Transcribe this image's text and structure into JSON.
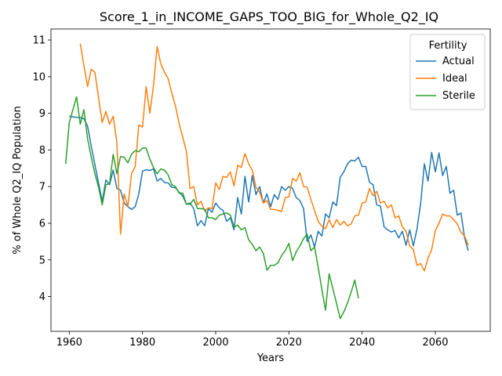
{
  "chart_data": {
    "type": "line",
    "title": "Score_1_in_INCOME_GAPS_TOO_BIG_for_Whole_Q2_IQ",
    "xlabel": "Years",
    "ylabel": "% of Whole Q2_IQ Population",
    "xlim": [
      1955,
      2075
    ],
    "ylim": [
      3.05,
      11.3
    ],
    "xticks": [
      1960,
      1980,
      2000,
      2020,
      2040,
      2060
    ],
    "yticks": [
      4,
      5,
      6,
      7,
      8,
      9,
      10,
      11
    ],
    "grid": false,
    "legend": {
      "title": "Fertility",
      "position": "top-right"
    },
    "series": [
      {
        "name": "Actual",
        "color": "#1f77b4",
        "points": [
          [
            1960,
            8.92
          ],
          [
            1961,
            8.9
          ],
          [
            1962,
            8.89
          ],
          [
            1963,
            8.88
          ],
          [
            1964,
            8.85
          ],
          [
            1965,
            8.65
          ],
          [
            1966,
            8.1
          ],
          [
            1967,
            7.6
          ],
          [
            1968,
            7.1
          ],
          [
            1969,
            6.6
          ],
          [
            1970,
            7.18
          ],
          [
            1971,
            7.05
          ],
          [
            1972,
            7.45
          ],
          [
            1973,
            6.95
          ],
          [
            1974,
            6.9
          ],
          [
            1975,
            6.55
          ],
          [
            1976,
            6.45
          ],
          [
            1977,
            6.38
          ],
          [
            1978,
            6.45
          ],
          [
            1979,
            6.8
          ],
          [
            1980,
            7.42
          ],
          [
            1981,
            7.46
          ],
          [
            1982,
            7.44
          ],
          [
            1983,
            7.48
          ],
          [
            1984,
            7.15
          ],
          [
            1985,
            7.22
          ],
          [
            1986,
            7.11
          ],
          [
            1987,
            7.1
          ],
          [
            1988,
            6.98
          ],
          [
            1989,
            6.97
          ],
          [
            1990,
            6.85
          ],
          [
            1991,
            6.74
          ],
          [
            1992,
            6.52
          ],
          [
            1993,
            6.55
          ],
          [
            1994,
            6.4
          ],
          [
            1995,
            5.93
          ],
          [
            1996,
            6.07
          ],
          [
            1997,
            5.93
          ],
          [
            1998,
            6.4
          ],
          [
            1999,
            6.3
          ],
          [
            2000,
            6.55
          ],
          [
            2001,
            6.42
          ],
          [
            2002,
            6.35
          ],
          [
            2003,
            6.05
          ],
          [
            2004,
            6.15
          ],
          [
            2005,
            5.82
          ],
          [
            2006,
            6.7
          ],
          [
            2007,
            6.25
          ],
          [
            2008,
            7.28
          ],
          [
            2009,
            6.58
          ],
          [
            2010,
            7.3
          ],
          [
            2011,
            6.78
          ],
          [
            2012,
            7.0
          ],
          [
            2013,
            6.55
          ],
          [
            2014,
            6.8
          ],
          [
            2015,
            6.45
          ],
          [
            2016,
            6.78
          ],
          [
            2017,
            6.65
          ],
          [
            2018,
            7.0
          ],
          [
            2019,
            6.9
          ],
          [
            2020,
            7.0
          ],
          [
            2021,
            6.95
          ],
          [
            2022,
            6.7
          ],
          [
            2023,
            6.62
          ],
          [
            2024,
            6.4
          ],
          [
            2025,
            5.5
          ],
          [
            2026,
            5.68
          ],
          [
            2027,
            5.35
          ],
          [
            2028,
            5.78
          ],
          [
            2029,
            5.65
          ],
          [
            2030,
            6.25
          ],
          [
            2031,
            6.15
          ],
          [
            2032,
            6.58
          ],
          [
            2033,
            6.48
          ],
          [
            2034,
            7.25
          ],
          [
            2035,
            7.4
          ],
          [
            2036,
            7.62
          ],
          [
            2037,
            7.72
          ],
          [
            2038,
            7.7
          ],
          [
            2039,
            7.8
          ],
          [
            2040,
            7.55
          ],
          [
            2041,
            7.55
          ],
          [
            2042,
            7.12
          ],
          [
            2043,
            7.05
          ],
          [
            2044,
            6.5
          ],
          [
            2045,
            6.47
          ],
          [
            2046,
            5.9
          ],
          [
            2047,
            5.82
          ],
          [
            2048,
            5.76
          ],
          [
            2049,
            5.8
          ],
          [
            2050,
            5.6
          ],
          [
            2051,
            5.78
          ],
          [
            2052,
            5.4
          ],
          [
            2053,
            5.82
          ],
          [
            2054,
            5.38
          ],
          [
            2055,
            5.85
          ],
          [
            2056,
            6.55
          ],
          [
            2057,
            7.62
          ],
          [
            2058,
            7.15
          ],
          [
            2059,
            7.93
          ],
          [
            2060,
            7.4
          ],
          [
            2061,
            7.92
          ],
          [
            2062,
            7.3
          ],
          [
            2063,
            7.55
          ],
          [
            2064,
            6.82
          ],
          [
            2065,
            6.9
          ],
          [
            2066,
            6.22
          ],
          [
            2067,
            6.28
          ],
          [
            2068,
            5.6
          ],
          [
            2069,
            5.25
          ]
        ]
      },
      {
        "name": "Ideal",
        "color": "#ff7f0e",
        "points": [
          [
            1963,
            10.9
          ],
          [
            1964,
            10.3
          ],
          [
            1965,
            9.73
          ],
          [
            1966,
            10.2
          ],
          [
            1967,
            10.12
          ],
          [
            1968,
            9.42
          ],
          [
            1969,
            8.75
          ],
          [
            1970,
            9.05
          ],
          [
            1971,
            8.7
          ],
          [
            1972,
            8.92
          ],
          [
            1973,
            8.2
          ],
          [
            1974,
            5.7
          ],
          [
            1975,
            6.8
          ],
          [
            1976,
            6.45
          ],
          [
            1977,
            7.35
          ],
          [
            1978,
            7.55
          ],
          [
            1979,
            8.68
          ],
          [
            1980,
            8.62
          ],
          [
            1981,
            9.73
          ],
          [
            1982,
            9.0
          ],
          [
            1983,
            9.75
          ],
          [
            1984,
            10.82
          ],
          [
            1985,
            10.35
          ],
          [
            1986,
            10.12
          ],
          [
            1987,
            9.95
          ],
          [
            1988,
            9.55
          ],
          [
            1989,
            9.2
          ],
          [
            1990,
            8.72
          ],
          [
            1991,
            8.35
          ],
          [
            1992,
            7.95
          ],
          [
            1993,
            6.95
          ],
          [
            1994,
            7.0
          ],
          [
            1995,
            6.5
          ],
          [
            1996,
            6.6
          ],
          [
            1997,
            6.33
          ],
          [
            1998,
            6.42
          ],
          [
            1999,
            6.4
          ],
          [
            2000,
            7.1
          ],
          [
            2001,
            6.92
          ],
          [
            2002,
            7.28
          ],
          [
            2003,
            7.25
          ],
          [
            2004,
            7.4
          ],
          [
            2005,
            7.02
          ],
          [
            2006,
            7.58
          ],
          [
            2007,
            7.52
          ],
          [
            2008,
            7.9
          ],
          [
            2009,
            7.62
          ],
          [
            2010,
            7.45
          ],
          [
            2011,
            6.98
          ],
          [
            2012,
            6.85
          ],
          [
            2013,
            6.55
          ],
          [
            2014,
            6.62
          ],
          [
            2015,
            6.38
          ],
          [
            2016,
            6.38
          ],
          [
            2017,
            6.35
          ],
          [
            2018,
            6.32
          ],
          [
            2019,
            6.7
          ],
          [
            2020,
            6.72
          ],
          [
            2021,
            7.22
          ],
          [
            2022,
            7.15
          ],
          [
            2023,
            7.38
          ],
          [
            2024,
            7.0
          ],
          [
            2025,
            6.98
          ],
          [
            2026,
            6.65
          ],
          [
            2027,
            6.35
          ],
          [
            2028,
            6.05
          ],
          [
            2029,
            5.92
          ],
          [
            2030,
            5.85
          ],
          [
            2031,
            6.1
          ],
          [
            2032,
            5.88
          ],
          [
            2033,
            6.1
          ],
          [
            2034,
            5.95
          ],
          [
            2035,
            6.05
          ],
          [
            2036,
            5.93
          ],
          [
            2037,
            5.98
          ],
          [
            2038,
            6.2
          ],
          [
            2039,
            6.22
          ],
          [
            2040,
            6.55
          ],
          [
            2041,
            6.58
          ],
          [
            2042,
            6.95
          ],
          [
            2043,
            6.75
          ],
          [
            2044,
            6.87
          ],
          [
            2045,
            6.55
          ],
          [
            2046,
            6.6
          ],
          [
            2047,
            6.42
          ],
          [
            2048,
            6.5
          ],
          [
            2049,
            6.15
          ],
          [
            2050,
            6.2
          ],
          [
            2051,
            5.9
          ],
          [
            2052,
            5.78
          ],
          [
            2053,
            5.38
          ],
          [
            2054,
            5.28
          ],
          [
            2055,
            4.85
          ],
          [
            2056,
            4.9
          ],
          [
            2057,
            4.7
          ],
          [
            2058,
            5.05
          ],
          [
            2059,
            5.28
          ],
          [
            2060,
            5.8
          ],
          [
            2061,
            6.0
          ],
          [
            2062,
            6.25
          ],
          [
            2063,
            6.2
          ],
          [
            2064,
            6.2
          ],
          [
            2065,
            6.1
          ],
          [
            2066,
            5.98
          ],
          [
            2067,
            5.75
          ],
          [
            2068,
            5.65
          ],
          [
            2069,
            5.4
          ]
        ]
      },
      {
        "name": "Sterile",
        "color": "#2ca02c",
        "points": [
          [
            1959,
            7.62
          ],
          [
            1960,
            8.75
          ],
          [
            1961,
            9.1
          ],
          [
            1962,
            9.45
          ],
          [
            1963,
            8.7
          ],
          [
            1964,
            9.1
          ],
          [
            1965,
            8.3
          ],
          [
            1966,
            7.8
          ],
          [
            1967,
            7.35
          ],
          [
            1968,
            6.98
          ],
          [
            1969,
            6.5
          ],
          [
            1970,
            7.05
          ],
          [
            1971,
            7.08
          ],
          [
            1972,
            7.88
          ],
          [
            1973,
            7.35
          ],
          [
            1974,
            7.82
          ],
          [
            1975,
            7.8
          ],
          [
            1976,
            7.65
          ],
          [
            1977,
            7.88
          ],
          [
            1978,
            7.98
          ],
          [
            1979,
            7.95
          ],
          [
            1980,
            8.05
          ],
          [
            1981,
            8.05
          ],
          [
            1982,
            7.75
          ],
          [
            1983,
            7.52
          ],
          [
            1984,
            7.35
          ],
          [
            1985,
            7.48
          ],
          [
            1986,
            7.45
          ],
          [
            1987,
            7.32
          ],
          [
            1988,
            7.05
          ],
          [
            1989,
            7.0
          ],
          [
            1990,
            6.82
          ],
          [
            1991,
            6.82
          ],
          [
            1992,
            6.52
          ],
          [
            1993,
            6.52
          ],
          [
            1994,
            6.65
          ],
          [
            1995,
            6.4
          ],
          [
            1996,
            6.4
          ],
          [
            1997,
            6.38
          ],
          [
            1998,
            6.15
          ],
          [
            1999,
            6.15
          ],
          [
            2000,
            6.1
          ],
          [
            2001,
            6.22
          ],
          [
            2002,
            6.25
          ],
          [
            2003,
            6.28
          ],
          [
            2004,
            6.22
          ],
          [
            2005,
            5.9
          ],
          [
            2006,
            5.95
          ],
          [
            2007,
            5.82
          ],
          [
            2008,
            5.88
          ],
          [
            2009,
            5.55
          ],
          [
            2010,
            5.42
          ],
          [
            2011,
            5.25
          ],
          [
            2012,
            5.35
          ],
          [
            2013,
            5.18
          ],
          [
            2014,
            4.72
          ],
          [
            2015,
            4.85
          ],
          [
            2016,
            4.85
          ],
          [
            2017,
            4.92
          ],
          [
            2018,
            5.12
          ],
          [
            2019,
            5.25
          ],
          [
            2020,
            5.45
          ],
          [
            2021,
            4.98
          ],
          [
            2022,
            5.22
          ],
          [
            2023,
            5.38
          ],
          [
            2024,
            5.58
          ],
          [
            2025,
            5.7
          ],
          [
            2026,
            5.25
          ],
          [
            2027,
            5.35
          ],
          [
            2028,
            4.8
          ],
          [
            2029,
            4.2
          ],
          [
            2030,
            3.63
          ],
          [
            2031,
            4.62
          ],
          [
            2032,
            4.22
          ],
          [
            2033,
            3.82
          ],
          [
            2034,
            3.4
          ],
          [
            2035,
            3.58
          ],
          [
            2036,
            3.82
          ],
          [
            2037,
            4.12
          ],
          [
            2038,
            4.45
          ],
          [
            2039,
            3.95
          ]
        ]
      }
    ]
  }
}
